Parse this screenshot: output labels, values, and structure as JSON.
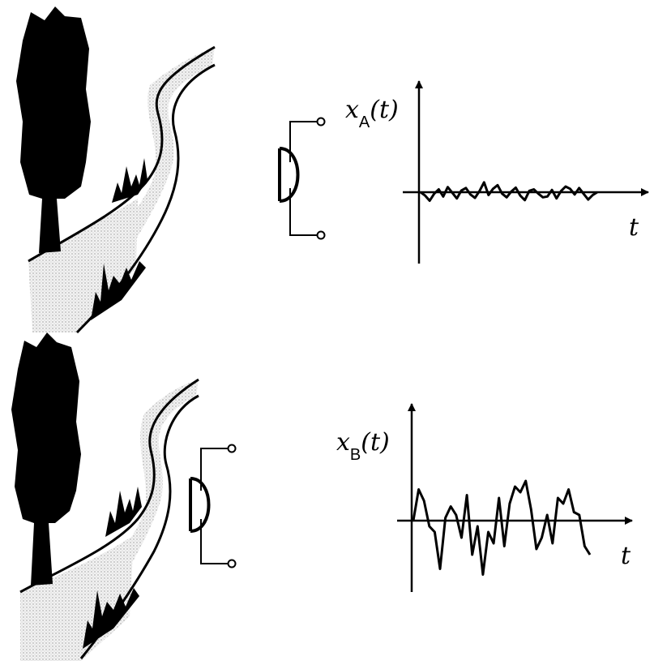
{
  "panels": [
    {
      "id": "A",
      "signal_label": {
        "var": "x",
        "sub": "A",
        "arg": "(t)"
      },
      "time_label": "t",
      "waveform": [
        0.0,
        -0.12,
        -0.3,
        -0.05,
        0.1,
        -0.15,
        0.18,
        -0.02,
        -0.22,
        0.06,
        0.15,
        -0.08,
        -0.2,
        0.04,
        0.35,
        -0.1,
        0.12,
        0.25,
        -0.05,
        -0.18,
        0.02,
        0.16,
        -0.12,
        -0.28,
        0.05,
        0.1,
        -0.05,
        -0.18,
        -0.15,
        0.08,
        -0.22,
        0.04,
        0.2,
        0.12,
        -0.08,
        0.15,
        -0.06,
        -0.26,
        -0.1,
        0.0
      ]
    },
    {
      "id": "B",
      "signal_label": {
        "var": "x",
        "sub": "B",
        "arg": "(t)"
      },
      "time_label": "t",
      "waveform": [
        0.0,
        0.55,
        0.35,
        -0.1,
        -0.2,
        -0.85,
        0.05,
        0.25,
        0.1,
        -0.3,
        0.45,
        -0.6,
        -0.1,
        -0.95,
        -0.2,
        -0.4,
        0.4,
        -0.45,
        0.3,
        0.6,
        0.5,
        0.7,
        0.2,
        -0.5,
        -0.3,
        0.1,
        -0.4,
        0.4,
        0.3,
        0.55,
        0.15,
        0.1,
        -0.45,
        -0.6
      ]
    }
  ]
}
